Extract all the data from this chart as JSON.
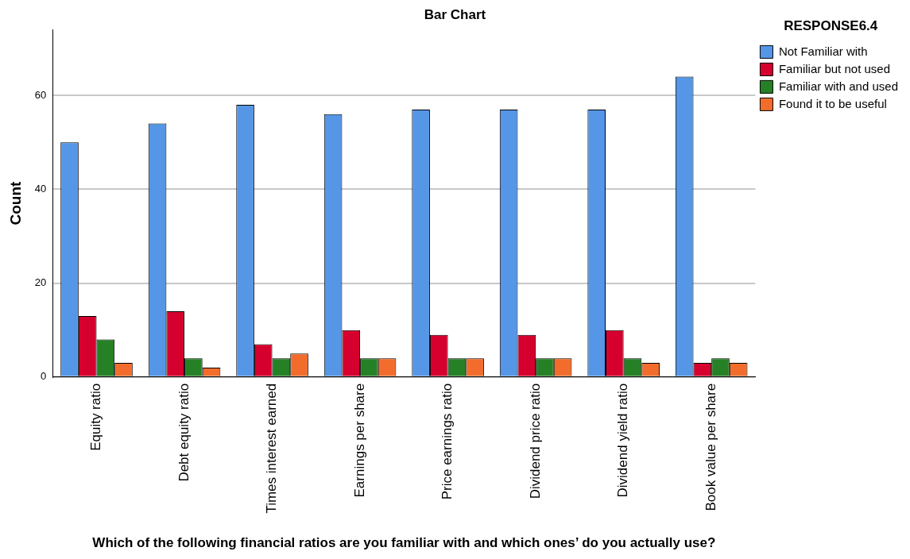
{
  "chart_data": {
    "type": "bar",
    "title": "Bar Chart",
    "xlabel": "Which of the following financial ratios are you familiar with and which ones’ do you actually use?",
    "ylabel": "Count",
    "legend_title": "RESPONSE6.4",
    "categories": [
      "Equity ratio",
      "Debt equity ratio",
      "Times interest earned",
      "Earnings per share",
      "Price earnings ratio",
      "Dividend price ratio",
      "Dividend yield ratio",
      "Book value per share"
    ],
    "series": [
      {
        "name": "Not Familiar with",
        "color": "#5596e6",
        "values": [
          50,
          54,
          58,
          56,
          57,
          57,
          57,
          64
        ]
      },
      {
        "name": "Familiar but not used",
        "color": "#d6002f",
        "values": [
          13,
          14,
          7,
          10,
          9,
          9,
          10,
          3
        ]
      },
      {
        "name": "Familiar with and used",
        "color": "#268126",
        "values": [
          8,
          4,
          4,
          4,
          4,
          4,
          4,
          4
        ]
      },
      {
        "name": "Found it to be useful",
        "color": "#f26d2c",
        "values": [
          3,
          2,
          5,
          4,
          4,
          4,
          3,
          3
        ]
      }
    ],
    "ylim": [
      0,
      74
    ],
    "yticks": [
      0,
      20,
      40,
      60
    ],
    "grid": "y",
    "legend": "top right"
  }
}
